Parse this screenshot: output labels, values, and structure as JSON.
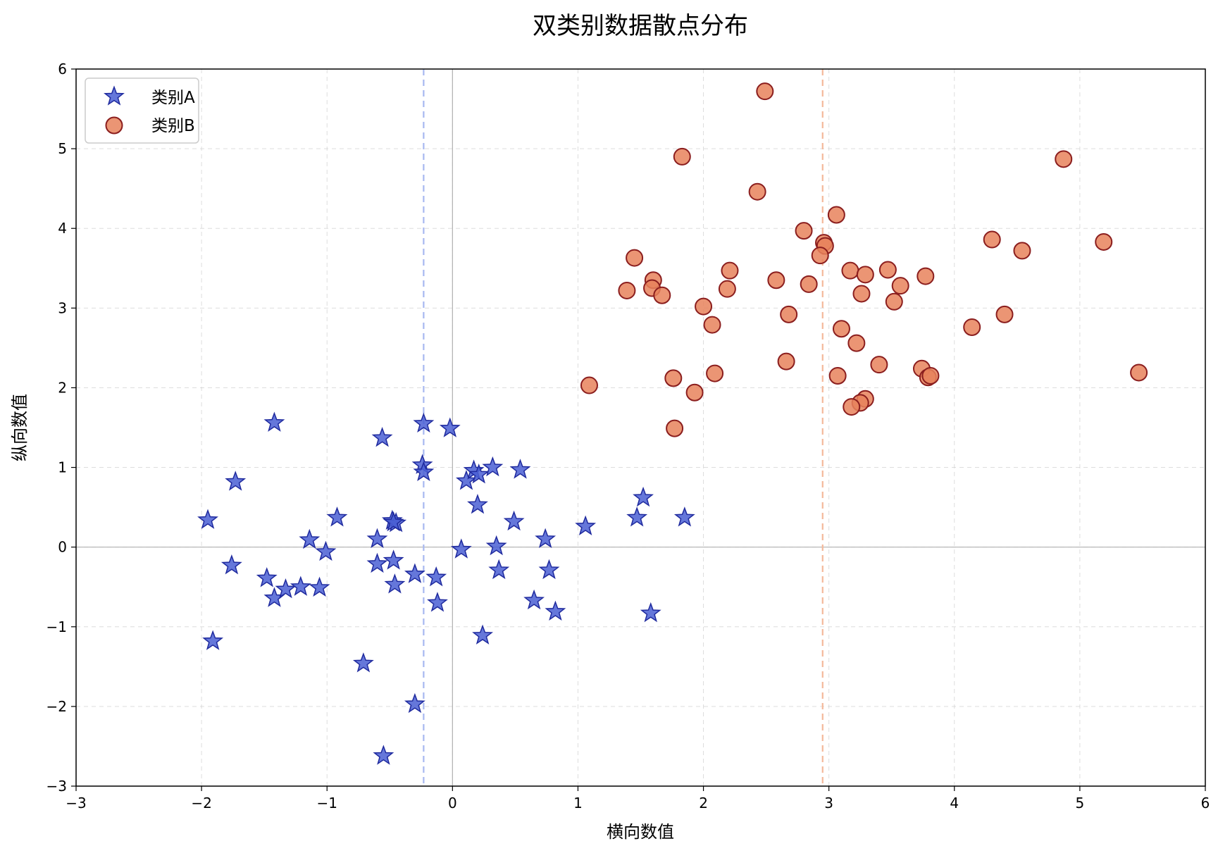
{
  "chart_data": {
    "type": "scatter",
    "title": "双类别数据散点分布",
    "xlabel": "横向数值",
    "ylabel": "纵向数值",
    "xlim": [
      -3,
      6
    ],
    "ylim": [
      -3,
      6
    ],
    "xticks": [
      -3,
      -2,
      -1,
      0,
      1,
      2,
      3,
      4,
      5,
      6
    ],
    "yticks": [
      -3,
      -2,
      -1,
      0,
      1,
      2,
      3,
      4,
      5,
      6
    ],
    "grid": true,
    "legend_position": "top-left",
    "reference_lines": {
      "horizontal": [
        0
      ],
      "vertical": [
        0
      ],
      "series_mean_lines": [
        {
          "series": "类别A",
          "x": -0.23,
          "color": "#a8b8f0"
        },
        {
          "series": "类别B",
          "x": 2.95,
          "color": "#f4b89a"
        }
      ]
    },
    "series": [
      {
        "name": "类别A",
        "marker": "star",
        "color": "#4a5fd4",
        "edge_color": "#1f2a9e",
        "points": [
          [
            -1.42,
            1.56
          ],
          [
            -0.56,
            1.37
          ],
          [
            -1.73,
            0.82
          ],
          [
            -1.95,
            0.34
          ],
          [
            -0.92,
            0.37
          ],
          [
            -1.14,
            0.09
          ],
          [
            -1.01,
            -0.06
          ],
          [
            -1.76,
            -0.23
          ],
          [
            -1.48,
            -0.39
          ],
          [
            -1.42,
            -0.64
          ],
          [
            -1.33,
            -0.53
          ],
          [
            -1.21,
            -0.5
          ],
          [
            -1.06,
            -0.51
          ],
          [
            -1.91,
            -1.18
          ],
          [
            -0.71,
            -1.46
          ],
          [
            -0.3,
            -1.97
          ],
          [
            -0.55,
            -2.62
          ],
          [
            -0.23,
            1.55
          ],
          [
            -0.24,
            1.03
          ],
          [
            -0.23,
            0.94
          ],
          [
            -0.02,
            1.49
          ],
          [
            0.11,
            0.83
          ],
          [
            0.17,
            0.96
          ],
          [
            0.21,
            0.91
          ],
          [
            0.32,
            1.0
          ],
          [
            0.54,
            0.97
          ],
          [
            0.2,
            0.53
          ],
          [
            -0.48,
            0.33
          ],
          [
            -0.45,
            0.3
          ],
          [
            -0.47,
            0.31
          ],
          [
            -0.6,
            0.1
          ],
          [
            -0.6,
            -0.21
          ],
          [
            -0.47,
            -0.17
          ],
          [
            -0.46,
            -0.47
          ],
          [
            -0.3,
            -0.34
          ],
          [
            -0.13,
            -0.38
          ],
          [
            -0.12,
            -0.7
          ],
          [
            0.07,
            -0.03
          ],
          [
            0.35,
            0.01
          ],
          [
            0.37,
            -0.29
          ],
          [
            0.49,
            0.32
          ],
          [
            0.74,
            0.1
          ],
          [
            0.77,
            -0.29
          ],
          [
            0.65,
            -0.67
          ],
          [
            0.82,
            -0.81
          ],
          [
            0.24,
            -1.11
          ],
          [
            1.06,
            0.26
          ],
          [
            1.47,
            0.37
          ],
          [
            1.52,
            0.62
          ],
          [
            1.85,
            0.37
          ],
          [
            1.58,
            -0.83
          ]
        ]
      },
      {
        "name": "类别B",
        "marker": "circle",
        "color": "#e8825c",
        "edge_color": "#8b1e1e",
        "points": [
          [
            2.49,
            5.72
          ],
          [
            1.83,
            4.9
          ],
          [
            4.87,
            4.87
          ],
          [
            2.43,
            4.46
          ],
          [
            3.06,
            4.17
          ],
          [
            2.8,
            3.97
          ],
          [
            4.3,
            3.86
          ],
          [
            5.19,
            3.83
          ],
          [
            4.54,
            3.72
          ],
          [
            2.96,
            3.82
          ],
          [
            2.97,
            3.78
          ],
          [
            2.93,
            3.66
          ],
          [
            1.45,
            3.63
          ],
          [
            2.21,
            3.47
          ],
          [
            3.17,
            3.47
          ],
          [
            3.29,
            3.42
          ],
          [
            3.47,
            3.48
          ],
          [
            3.77,
            3.4
          ],
          [
            2.58,
            3.35
          ],
          [
            1.6,
            3.35
          ],
          [
            1.59,
            3.25
          ],
          [
            2.84,
            3.3
          ],
          [
            3.57,
            3.28
          ],
          [
            1.39,
            3.22
          ],
          [
            2.19,
            3.24
          ],
          [
            3.26,
            3.18
          ],
          [
            1.67,
            3.16
          ],
          [
            3.52,
            3.08
          ],
          [
            2.0,
            3.02
          ],
          [
            2.68,
            2.92
          ],
          [
            4.4,
            2.92
          ],
          [
            2.07,
            2.79
          ],
          [
            3.1,
            2.74
          ],
          [
            4.14,
            2.76
          ],
          [
            3.22,
            2.56
          ],
          [
            2.66,
            2.33
          ],
          [
            3.4,
            2.29
          ],
          [
            3.74,
            2.24
          ],
          [
            5.47,
            2.19
          ],
          [
            2.09,
            2.18
          ],
          [
            3.07,
            2.15
          ],
          [
            3.79,
            2.13
          ],
          [
            3.81,
            2.15
          ],
          [
            1.76,
            2.12
          ],
          [
            1.09,
            2.03
          ],
          [
            1.93,
            1.94
          ],
          [
            3.29,
            1.86
          ],
          [
            3.25,
            1.81
          ],
          [
            3.18,
            1.76
          ],
          [
            1.77,
            1.49
          ]
        ]
      }
    ]
  },
  "legend": {
    "items": [
      {
        "label": "类别A"
      },
      {
        "label": "类别B"
      }
    ]
  }
}
